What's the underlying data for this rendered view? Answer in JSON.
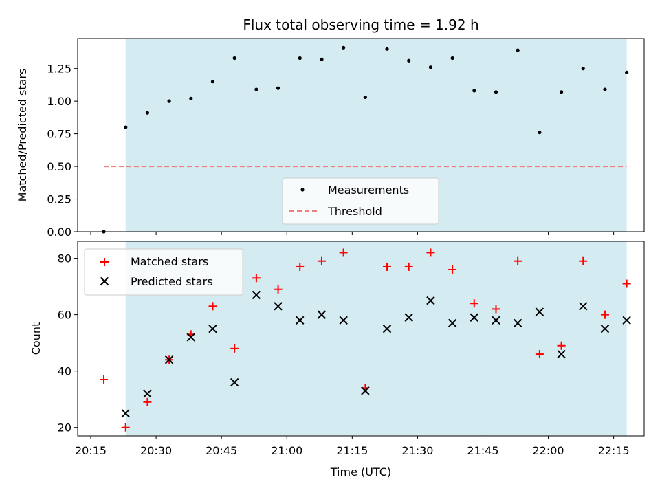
{
  "chart_data": [
    {
      "type": "scatter",
      "title": "Flux total observing time = 1.92 h",
      "xlabel": "",
      "ylabel": "Matched/Predicted stars",
      "ylim": [
        0,
        1.48
      ],
      "yticks": [
        "0.00",
        "0.25",
        "0.50",
        "0.75",
        "1.00",
        "1.25"
      ],
      "ytick_values": [
        0,
        0.25,
        0.5,
        0.75,
        1.0,
        1.25
      ],
      "shaded_span": [
        "20:23",
        "22:18"
      ],
      "shade_color": "#d4ebf1",
      "legend_position": "lower-center",
      "threshold": {
        "name": "Threshold",
        "value": 0.5,
        "x_start": "20:18",
        "x_end": "22:18",
        "color": "#f08080"
      },
      "series": [
        {
          "name": "Measurements",
          "color": "#000000",
          "marker": "dot",
          "x": [
            "20:18",
            "20:23",
            "20:28",
            "20:33",
            "20:38",
            "20:43",
            "20:48",
            "20:53",
            "20:58",
            "21:03",
            "21:08",
            "21:13",
            "21:18",
            "21:23",
            "21:28",
            "21:33",
            "21:38",
            "21:43",
            "21:48",
            "21:53",
            "21:58",
            "22:03",
            "22:08",
            "22:13",
            "22:18"
          ],
          "y": [
            0.0,
            0.8,
            0.91,
            1.0,
            1.02,
            1.15,
            1.33,
            1.09,
            1.1,
            1.33,
            1.32,
            1.41,
            1.03,
            1.4,
            1.31,
            1.26,
            1.33,
            1.08,
            1.07,
            1.39,
            0.76,
            1.07,
            1.25,
            1.09,
            1.22
          ]
        }
      ]
    },
    {
      "type": "scatter",
      "title": "",
      "xlabel": "Time (UTC)",
      "ylabel": "Count",
      "ylim": [
        17,
        86
      ],
      "yticks": [
        "20",
        "40",
        "60",
        "80"
      ],
      "ytick_values": [
        20,
        40,
        60,
        80
      ],
      "xticks": [
        "20:15",
        "20:30",
        "20:45",
        "21:00",
        "21:15",
        "21:30",
        "21:45",
        "22:00",
        "22:15"
      ],
      "xlim": [
        "20:12",
        "22:22"
      ],
      "shaded_span": [
        "20:23",
        "22:18"
      ],
      "legend_position": "upper-left",
      "series": [
        {
          "name": "Matched stars",
          "color": "#ff0000",
          "marker": "plus",
          "x": [
            "20:18",
            "20:23",
            "20:28",
            "20:33",
            "20:38",
            "20:43",
            "20:48",
            "20:53",
            "20:58",
            "21:03",
            "21:08",
            "21:13",
            "21:18",
            "21:23",
            "21:28",
            "21:33",
            "21:38",
            "21:43",
            "21:48",
            "21:53",
            "21:58",
            "22:03",
            "22:08",
            "22:13",
            "22:18"
          ],
          "y": [
            37,
            20,
            29,
            44,
            53,
            63,
            48,
            73,
            69,
            77,
            79,
            82,
            34,
            77,
            77,
            82,
            76,
            64,
            62,
            79,
            46,
            49,
            79,
            60,
            71
          ]
        },
        {
          "name": "Predicted stars",
          "color": "#000000",
          "marker": "x",
          "x": [
            "20:23",
            "20:28",
            "20:33",
            "20:38",
            "20:43",
            "20:48",
            "20:53",
            "20:58",
            "21:03",
            "21:08",
            "21:13",
            "21:18",
            "21:23",
            "21:28",
            "21:33",
            "21:38",
            "21:43",
            "21:48",
            "21:53",
            "21:58",
            "22:03",
            "22:08",
            "22:13",
            "22:18"
          ],
          "y": [
            25,
            32,
            44,
            52,
            55,
            36,
            67,
            63,
            58,
            60,
            58,
            33,
            55,
            59,
            65,
            57,
            59,
            58,
            57,
            61,
            46,
            63,
            55,
            58
          ]
        }
      ]
    }
  ]
}
